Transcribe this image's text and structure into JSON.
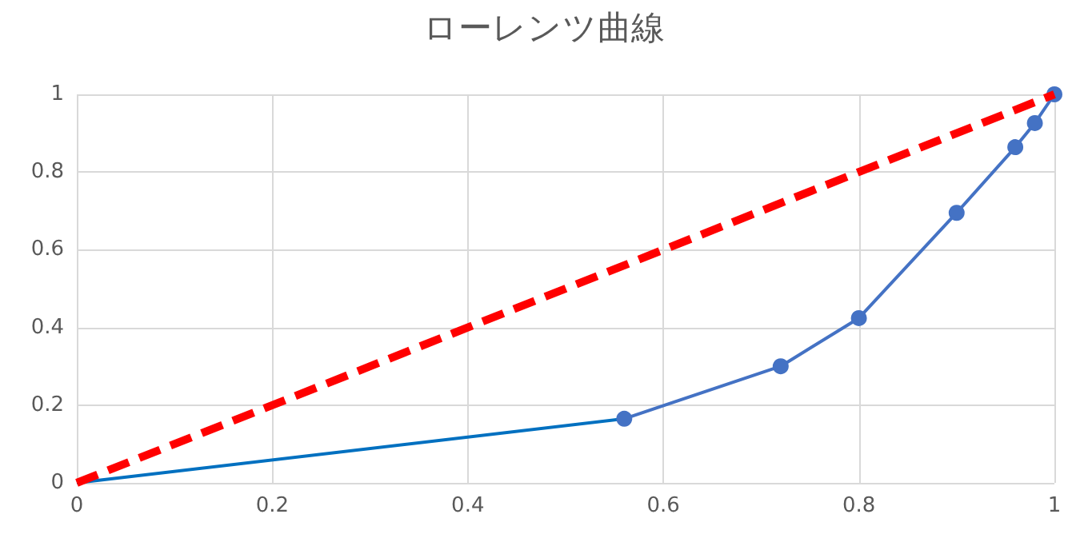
{
  "chart_data": {
    "type": "line",
    "title": "ローレンツ曲線",
    "xlim": [
      0,
      1
    ],
    "ylim": [
      0,
      1
    ],
    "xticks": [
      0,
      0.2,
      0.4,
      0.6,
      0.8,
      1
    ],
    "yticks": [
      0,
      0.2,
      0.4,
      0.6,
      0.8,
      1
    ],
    "grid": true,
    "series": [
      {
        "color": "#0070c0",
        "x": [
          0,
          0.56
        ],
        "values": [
          0,
          0.165
        ],
        "marker": "none",
        "line_style": "solid"
      },
      {
        "color": "#4472c4",
        "x": [
          0.56,
          0.72,
          0.8,
          0.9,
          0.96,
          0.98,
          1
        ],
        "values": [
          0.165,
          0.3,
          0.424,
          0.695,
          0.864,
          0.926,
          1
        ],
        "marker": "circle",
        "line_style": "solid"
      },
      {
        "color": "#ff0000",
        "x": [
          0,
          1
        ],
        "values": [
          0,
          1
        ],
        "marker": "none",
        "line_style": "dashed"
      }
    ]
  }
}
